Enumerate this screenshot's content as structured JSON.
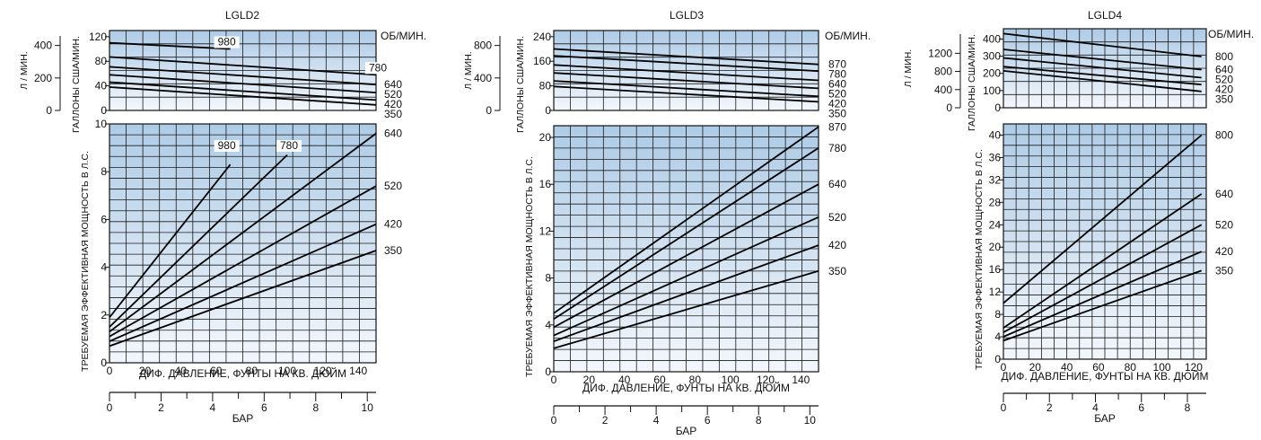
{
  "chart_data": [
    {
      "type": "line",
      "title": "LGLD2",
      "flow_plot": {
        "unit_label": "ОБ/МИН.",
        "ylabel_left": "Л / МИН.",
        "ylabel_right": "ГАЛЛОНЫ США/МИН.",
        "ylim": [
          0,
          130
        ],
        "yticks": [
          0,
          40,
          80,
          120
        ],
        "yticks_lpm": [
          0,
          200,
          400
        ],
        "series": [
          {
            "name": "980",
            "x": [
              0,
              68
            ],
            "y": [
              110,
              100
            ]
          },
          {
            "name": "780",
            "x": [
              0,
              150
            ],
            "y": [
              87,
              58
            ]
          },
          {
            "name": "640",
            "x": [
              0,
              150
            ],
            "y": [
              71,
              42
            ]
          },
          {
            "name": "520",
            "x": [
              0,
              150
            ],
            "y": [
              58,
              29
            ]
          },
          {
            "name": "420",
            "x": [
              0,
              150
            ],
            "y": [
              46,
              17
            ]
          },
          {
            "name": "350",
            "x": [
              0,
              150
            ],
            "y": [
              38,
              9
            ]
          }
        ],
        "right_labels": [
          "640",
          "520",
          "420",
          "350"
        ],
        "inline_labels": [
          "980",
          "780"
        ]
      },
      "power_plot": {
        "ylabel": "ТРЕБУЕМАЯ ЭФФЕКТИВНАЯ МОЩНОСТЬ В Л.С.",
        "ylim": [
          0,
          10
        ],
        "yticks": [
          0,
          2,
          4,
          6,
          8,
          10
        ],
        "series": [
          {
            "name": "980",
            "x": [
              0,
              68
            ],
            "y": [
              1.9,
              8.3
            ]
          },
          {
            "name": "780",
            "x": [
              0,
              100
            ],
            "y": [
              1.5,
              8.7
            ]
          },
          {
            "name": "640",
            "x": [
              0,
              150
            ],
            "y": [
              1.3,
              9.6
            ]
          },
          {
            "name": "520",
            "x": [
              0,
              150
            ],
            "y": [
              1.1,
              7.4
            ]
          },
          {
            "name": "420",
            "x": [
              0,
              150
            ],
            "y": [
              0.9,
              5.8
            ]
          },
          {
            "name": "350",
            "x": [
              0,
              150
            ],
            "y": [
              0.7,
              4.7
            ]
          }
        ],
        "right_labels": [
          "640",
          "520",
          "420",
          "350"
        ],
        "inline_labels": [
          "980",
          "780"
        ]
      },
      "xlabel": "ДИФ. ДАВЛЕНИЕ, ФУНТЫ НА КВ. ДЮЙМ",
      "xlim": [
        0,
        150
      ],
      "xticks": [
        0,
        20,
        40,
        60,
        80,
        100,
        120,
        140
      ],
      "bar_axis": {
        "label": "БАР",
        "ticks": [
          0,
          2,
          4,
          6,
          8,
          10
        ],
        "max": 10.34
      }
    },
    {
      "type": "line",
      "title": "LGLD3",
      "flow_plot": {
        "unit_label": "ОБ/МИН.",
        "ylabel_left": "Л / МИН.",
        "ylabel_right": "ГАЛЛОНЫ США/МИН.",
        "ylim": [
          0,
          260
        ],
        "yticks": [
          0,
          80,
          160,
          240
        ],
        "yticks_lpm": [
          0,
          400,
          800
        ],
        "series": [
          {
            "name": "870",
            "x": [
              0,
              150
            ],
            "y": [
              200,
              150
            ]
          },
          {
            "name": "780",
            "x": [
              0,
              150
            ],
            "y": [
              178,
              128
            ]
          },
          {
            "name": "640",
            "x": [
              0,
              150
            ],
            "y": [
              148,
              98
            ]
          },
          {
            "name": "520",
            "x": [
              0,
              150
            ],
            "y": [
              122,
              72
            ]
          },
          {
            "name": "420",
            "x": [
              0,
              150
            ],
            "y": [
              96,
              46
            ]
          },
          {
            "name": "350",
            "x": [
              0,
              150
            ],
            "y": [
              78,
              28
            ]
          }
        ],
        "right_labels": [
          "870",
          "780",
          "640",
          "520",
          "420",
          "350"
        ],
        "inline_labels": []
      },
      "power_plot": {
        "ylabel": "ТРЕБУЕМАЯ ЭФФЕКТИВНАЯ МОЩНОСТЬ В Л.С.",
        "ylim": [
          0,
          21
        ],
        "yticks": [
          0,
          4,
          8,
          12,
          16,
          20
        ],
        "series": [
          {
            "name": "870",
            "x": [
              0,
              150
            ],
            "y": [
              5.0,
              20.9
            ]
          },
          {
            "name": "780",
            "x": [
              0,
              150
            ],
            "y": [
              4.5,
              19.1
            ]
          },
          {
            "name": "640",
            "x": [
              0,
              150
            ],
            "y": [
              3.8,
              16.0
            ]
          },
          {
            "name": "520",
            "x": [
              0,
              150
            ],
            "y": [
              3.1,
              13.2
            ]
          },
          {
            "name": "420",
            "x": [
              0,
              150
            ],
            "y": [
              2.6,
              10.8
            ]
          },
          {
            "name": "350",
            "x": [
              0,
              150
            ],
            "y": [
              2.0,
              8.6
            ]
          }
        ],
        "right_labels": [
          "870",
          "780",
          "640",
          "520",
          "420",
          "350"
        ],
        "inline_labels": []
      },
      "xlabel": "ДИФ. ДАВЛЕНИЕ, ФУНТЫ НА КВ. ДЮЙМ",
      "xlim": [
        0,
        150
      ],
      "xticks": [
        0,
        20,
        40,
        60,
        80,
        100,
        120,
        140
      ],
      "bar_axis": {
        "label": "БАР",
        "ticks": [
          0,
          2,
          4,
          6,
          8,
          10
        ],
        "max": 10.34
      }
    },
    {
      "type": "line",
      "title": "LGLD4",
      "flow_plot": {
        "unit_label": "ОБ/МИН.",
        "ylabel_left": "Л / МИН.",
        "ylabel_right": "ГАЛЛОНЫ США/МИН.",
        "ylim": [
          0,
          460
        ],
        "yticks": [
          0,
          100,
          200,
          300,
          400
        ],
        "yticks_lpm": [
          0,
          400,
          800,
          1200
        ],
        "series": [
          {
            "name": "800",
            "x": [
              0,
              125
            ],
            "y": [
              432,
              298
            ]
          },
          {
            "name": "640",
            "x": [
              0,
              125
            ],
            "y": [
              340,
              222
            ]
          },
          {
            "name": "520",
            "x": [
              0,
              125
            ],
            "y": [
              290,
              175
            ]
          },
          {
            "name": "420",
            "x": [
              0,
              125
            ],
            "y": [
              240,
              135
            ]
          },
          {
            "name": "350",
            "x": [
              0,
              125
            ],
            "y": [
              215,
              95
            ]
          }
        ],
        "right_labels": [
          "800",
          "640",
          "520",
          "420",
          "350"
        ],
        "inline_labels": []
      },
      "power_plot": {
        "ylabel": "ТРЕБУЕМАЯ ЭФФЕКТИВНАЯ МОЩНОСТЬ В Л.С.",
        "ylim": [
          0,
          42
        ],
        "yticks": [
          0,
          4,
          8,
          12,
          16,
          20,
          24,
          28,
          32,
          36,
          40
        ],
        "series": [
          {
            "name": "800",
            "x": [
              0,
              125
            ],
            "y": [
              10.0,
              40.0
            ]
          },
          {
            "name": "640",
            "x": [
              0,
              125
            ],
            "y": [
              5.6,
              29.5
            ]
          },
          {
            "name": "520",
            "x": [
              0,
              125
            ],
            "y": [
              4.8,
              24.0
            ]
          },
          {
            "name": "420",
            "x": [
              0,
              125
            ],
            "y": [
              4.0,
              19.2
            ]
          },
          {
            "name": "350",
            "x": [
              0,
              125
            ],
            "y": [
              3.3,
              15.8
            ]
          }
        ],
        "right_labels": [
          "800",
          "640",
          "520",
          "420",
          "350"
        ],
        "inline_labels": []
      },
      "xlabel": "ДИФ. ДАВЛЕНИЕ, ФУНТЫ НА КВ. ДЮЙМ",
      "xlim": [
        0,
        128
      ],
      "xticks": [
        0,
        20,
        40,
        60,
        80,
        100,
        120
      ],
      "bar_axis": {
        "label": "БАР",
        "ticks": [
          0,
          2,
          4,
          6,
          8
        ],
        "max": 8.82
      }
    }
  ]
}
